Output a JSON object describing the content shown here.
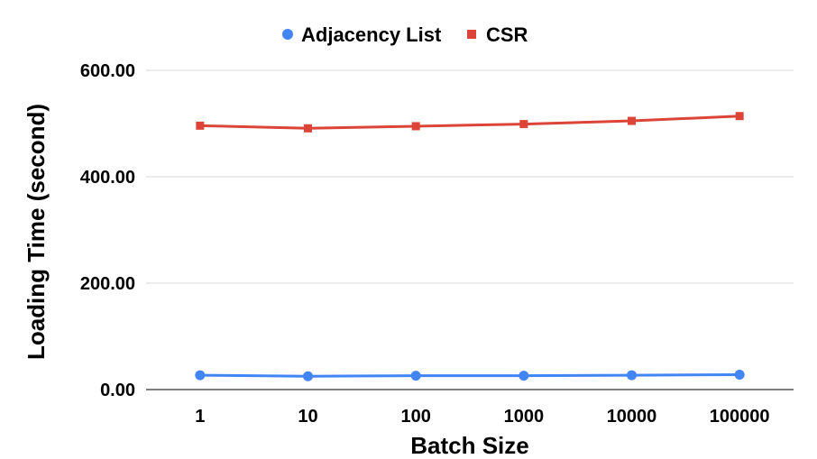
{
  "chart_data": {
    "type": "line",
    "title": "",
    "xlabel": "Batch Size",
    "ylabel": "Loading Time (second)",
    "categories": [
      "1",
      "10",
      "100",
      "1000",
      "10000",
      "100000"
    ],
    "ylim": [
      0,
      600
    ],
    "yticks": [
      "0.00",
      "200.00",
      "400.00",
      "600.00"
    ],
    "ytick_values": [
      0,
      200,
      400,
      600
    ],
    "grid": true,
    "legend_position": "top-center",
    "series": [
      {
        "name": "Adjacency List",
        "color": "#4285f4",
        "marker": "circle",
        "values": [
          27,
          25,
          26,
          26,
          27,
          28
        ]
      },
      {
        "name": "CSR",
        "color": "#db4437",
        "marker": "square",
        "values": [
          496,
          491,
          495,
          499,
          505,
          514
        ]
      }
    ]
  }
}
